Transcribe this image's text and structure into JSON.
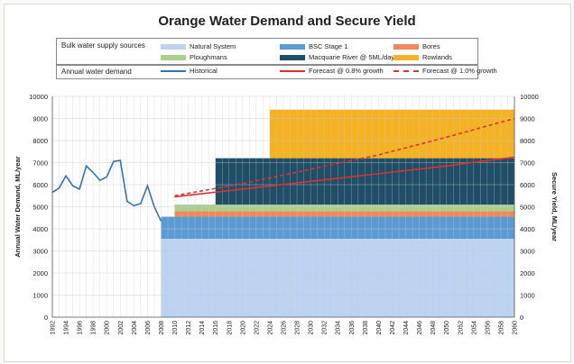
{
  "chart_data": {
    "type": "area",
    "title": "Orange Water Demand and Secure Yield",
    "ylabel": "Annual Water Demand, ML/year",
    "y2label": "Secure Yield, ML/year",
    "ylim": [
      0,
      10000
    ],
    "xlim": [
      1992,
      2060
    ],
    "ytick_step": 1000,
    "xtick_step": 2,
    "grid": true,
    "legend": {
      "supply_header": "Bulk water supply sources",
      "demand_header": "Annual water demand",
      "supply_items": [
        {
          "key": "natural",
          "label": "Natural System",
          "color": "#bcd4f2"
        },
        {
          "key": "bsc",
          "label": "BSC Stage 1",
          "color": "#5b9bd5"
        },
        {
          "key": "bores",
          "label": "Bores",
          "color": "#f08a5d"
        },
        {
          "key": "ploughmans",
          "label": "Ploughmans",
          "color": "#a9d18e"
        },
        {
          "key": "macquarie",
          "label": "Macquarie River @ 5ML/day",
          "color": "#1f4e66"
        },
        {
          "key": "rowlands",
          "label": "Rowlands",
          "color": "#f5b323"
        }
      ],
      "demand_items": [
        {
          "key": "historical",
          "label": "Historical",
          "color": "#2e75b6",
          "style": "solid"
        },
        {
          "key": "f08",
          "label": "Forecast @ 0.8% growth",
          "color": "#e03030",
          "style": "solid"
        },
        {
          "key": "f10",
          "label": "Forecast @ 1.0% growth",
          "color": "#e03030",
          "style": "dashed"
        }
      ]
    },
    "supply_stack": [
      {
        "name": "Natural System",
        "color": "#bcd4f2",
        "x": [
          2008,
          2060
        ],
        "from": 0,
        "to": 3550
      },
      {
        "name": "BSC Stage 1",
        "color": "#5b9bd5",
        "x": [
          2008,
          2060
        ],
        "from": 3550,
        "to": 4550
      },
      {
        "name": "Bores",
        "color": "#f08a5d",
        "x": [
          2010,
          2060
        ],
        "from": 4550,
        "to": 4800
      },
      {
        "name": "Ploughmans",
        "color": "#a9d18e",
        "x": [
          2010,
          2060
        ],
        "from": 4800,
        "to": 5100
      },
      {
        "name": "Macquarie River @ 5ML/day",
        "color": "#1f4e66",
        "x": [
          2016,
          2060
        ],
        "from": 5100,
        "to": 7200
      },
      {
        "name": "Rowlands",
        "color": "#f5b323",
        "x": [
          2024,
          2060
        ],
        "from": 7200,
        "to": 9400
      }
    ],
    "series": [
      {
        "name": "Historical",
        "color": "#2e75b6",
        "style": "solid",
        "x": [
          1992,
          1993,
          1994,
          1995,
          1996,
          1997,
          1998,
          1999,
          2000,
          2001,
          2002,
          2003,
          2004,
          2005,
          2006,
          2007,
          2008
        ],
        "values": [
          5650,
          5850,
          6400,
          5950,
          5800,
          6850,
          6550,
          6200,
          6350,
          7050,
          7100,
          5250,
          5050,
          5150,
          5950,
          5000,
          4350
        ]
      },
      {
        "name": "Forecast @ 0.8% growth",
        "color": "#e03030",
        "style": "solid",
        "x": [
          2010,
          2020,
          2030,
          2040,
          2050,
          2060
        ],
        "values": [
          5450,
          5800,
          6150,
          6500,
          6850,
          7250
        ]
      },
      {
        "name": "Forecast @ 1.0% growth",
        "color": "#e03030",
        "style": "dashed",
        "x": [
          2010,
          2020,
          2030,
          2040,
          2050,
          2060
        ],
        "values": [
          5500,
          6050,
          6700,
          7350,
          8150,
          9000
        ]
      }
    ]
  }
}
